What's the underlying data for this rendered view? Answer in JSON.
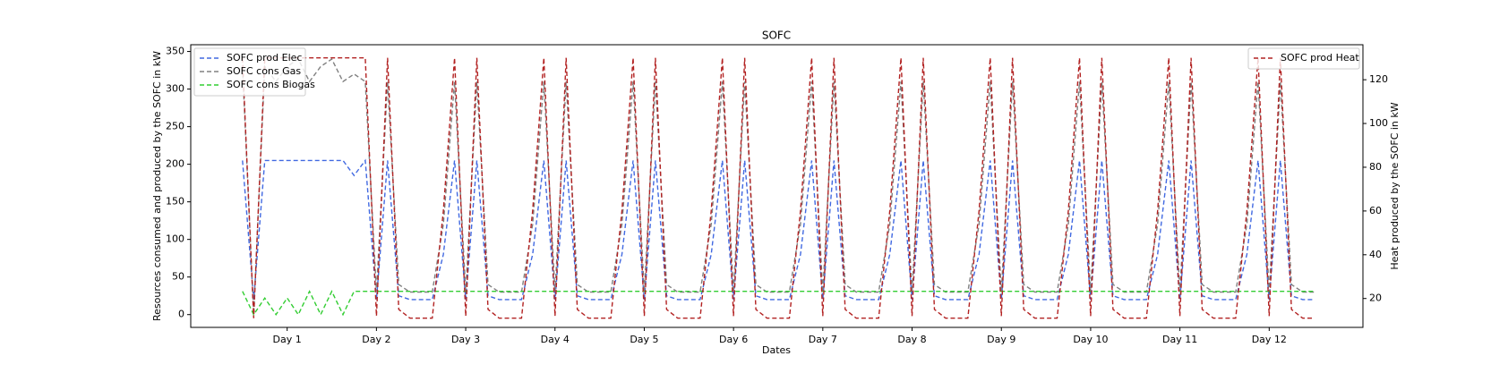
{
  "chart_data": {
    "type": "line",
    "title": "SOFC",
    "xlabel": "Dates",
    "ylabel": "Resources consumed and produced by the SOFC in kW",
    "y2label": "Heat produced by the SOFC in kW",
    "xlim": [
      -0.08,
      13.05
    ],
    "ylim": [
      -17,
      359
    ],
    "y2lim": [
      6.8,
      136
    ],
    "xticks": [
      {
        "value": 1,
        "label": "Day 1"
      },
      {
        "value": 2,
        "label": "Day 2"
      },
      {
        "value": 3,
        "label": "Day 3"
      },
      {
        "value": 4,
        "label": "Day 4"
      },
      {
        "value": 5,
        "label": "Day 5"
      },
      {
        "value": 6,
        "label": "Day 6"
      },
      {
        "value": 7,
        "label": "Day 7"
      },
      {
        "value": 8,
        "label": "Day 8"
      },
      {
        "value": 9,
        "label": "Day 9"
      },
      {
        "value": 10,
        "label": "Day 10"
      },
      {
        "value": 11,
        "label": "Day 11"
      },
      {
        "value": 12,
        "label": "Day 12"
      }
    ],
    "yticks": [
      0,
      50,
      100,
      150,
      200,
      250,
      300,
      350
    ],
    "y2ticks": [
      20,
      40,
      60,
      80,
      100,
      120
    ],
    "grid": false,
    "legend": "upper left",
    "legend2": "upper right",
    "x": [
      0.5,
      0.625,
      0.75,
      0.875,
      1,
      1.125,
      1.25,
      1.375,
      1.5,
      1.625,
      1.75,
      1.875,
      2,
      2.125,
      2.25,
      2.375,
      2.5,
      2.625,
      2.75,
      2.875,
      3,
      3.125,
      3.25,
      3.375,
      3.5,
      3.625,
      3.75,
      3.875,
      4,
      4.125,
      4.25,
      4.375,
      4.5,
      4.625,
      4.75,
      4.875,
      5,
      5.125,
      5.25,
      5.375,
      5.5,
      5.625,
      5.75,
      5.875,
      6,
      6.125,
      6.25,
      6.375,
      6.5,
      6.625,
      6.75,
      6.875,
      7,
      7.125,
      7.25,
      7.375,
      7.5,
      7.625,
      7.75,
      7.875,
      8,
      8.125,
      8.25,
      8.375,
      8.5,
      8.625,
      8.75,
      8.875,
      9,
      9.125,
      9.25,
      9.375,
      9.5,
      9.625,
      9.75,
      9.875,
      10,
      10.125,
      10.25,
      10.375,
      10.5,
      10.625,
      10.75,
      10.875,
      11,
      11.125,
      11.25,
      11.375,
      11.5,
      11.625,
      11.75,
      11.875,
      12,
      12.125,
      12.25,
      12.375,
      12.5
    ],
    "series": [
      {
        "name": "SOFC prod Elec",
        "color": "#4169e1",
        "axis": "y",
        "values": [
          205,
          20,
          205,
          205,
          205,
          205,
          205,
          205,
          205,
          205,
          185,
          205,
          20,
          205,
          25,
          20,
          20,
          20,
          80,
          205,
          20,
          205,
          25,
          20,
          20,
          20,
          80,
          205,
          20,
          205,
          25,
          20,
          20,
          20,
          80,
          205,
          20,
          205,
          25,
          20,
          20,
          20,
          80,
          205,
          20,
          205,
          25,
          20,
          20,
          20,
          80,
          205,
          20,
          205,
          25,
          20,
          20,
          20,
          80,
          205,
          20,
          205,
          25,
          20,
          20,
          20,
          80,
          205,
          20,
          205,
          25,
          20,
          20,
          20,
          80,
          205,
          20,
          205,
          25,
          20,
          20,
          20,
          80,
          205,
          20,
          205,
          25,
          20,
          20,
          20,
          80,
          205,
          20,
          205,
          25,
          20,
          20
        ]
      },
      {
        "name": "SOFC cons Gas",
        "color": "#808080",
        "axis": "y",
        "values": [
          330,
          0,
          330,
          310,
          330,
          340,
          310,
          330,
          340,
          310,
          320,
          310,
          30,
          310,
          40,
          30,
          30,
          30,
          120,
          310,
          30,
          310,
          40,
          30,
          30,
          30,
          120,
          310,
          30,
          310,
          40,
          30,
          30,
          30,
          120,
          310,
          30,
          310,
          40,
          30,
          30,
          30,
          120,
          310,
          30,
          310,
          40,
          30,
          30,
          30,
          120,
          310,
          30,
          310,
          40,
          30,
          30,
          30,
          120,
          310,
          30,
          310,
          40,
          30,
          30,
          30,
          120,
          310,
          30,
          310,
          40,
          30,
          30,
          30,
          120,
          310,
          30,
          310,
          40,
          30,
          30,
          30,
          120,
          310,
          30,
          310,
          40,
          30,
          30,
          30,
          120,
          310,
          30,
          310,
          40,
          30,
          30
        ]
      },
      {
        "name": "SOFC cons Biogas",
        "color": "#32cd32",
        "axis": "y",
        "values": [
          31,
          0,
          22,
          0,
          22,
          0,
          31,
          0,
          31,
          0,
          31,
          31,
          31,
          31,
          31,
          31,
          31,
          31,
          31,
          31,
          31,
          31,
          31,
          31,
          31,
          31,
          31,
          31,
          31,
          31,
          31,
          31,
          31,
          31,
          31,
          31,
          31,
          31,
          31,
          31,
          31,
          31,
          31,
          31,
          31,
          31,
          31,
          31,
          31,
          31,
          31,
          31,
          31,
          31,
          31,
          31,
          31,
          31,
          31,
          31,
          31,
          31,
          31,
          31,
          31,
          31,
          31,
          31,
          31,
          31,
          31,
          31,
          31,
          31,
          31,
          31,
          31,
          31,
          31,
          31,
          31,
          31,
          31,
          31,
          31,
          31,
          31,
          31,
          31,
          31,
          31,
          31,
          31,
          31,
          31,
          31,
          31
        ]
      },
      {
        "name": "SOFC prod Heat",
        "color": "#b22222",
        "axis": "y2",
        "values": [
          130,
          11,
          130,
          130,
          130,
          130,
          130,
          130,
          130,
          130,
          130,
          130,
          12,
          130,
          15,
          11,
          11,
          11,
          60,
          130,
          12,
          130,
          15,
          11,
          11,
          11,
          60,
          130,
          12,
          130,
          15,
          11,
          11,
          11,
          60,
          130,
          12,
          130,
          15,
          11,
          11,
          11,
          60,
          130,
          12,
          130,
          15,
          11,
          11,
          11,
          60,
          130,
          12,
          130,
          15,
          11,
          11,
          11,
          60,
          130,
          12,
          130,
          15,
          11,
          11,
          11,
          60,
          130,
          12,
          130,
          15,
          11,
          11,
          11,
          60,
          130,
          12,
          130,
          15,
          11,
          11,
          11,
          60,
          130,
          12,
          130,
          15,
          11,
          11,
          11,
          60,
          130,
          12,
          130,
          15,
          11,
          11
        ]
      }
    ]
  }
}
